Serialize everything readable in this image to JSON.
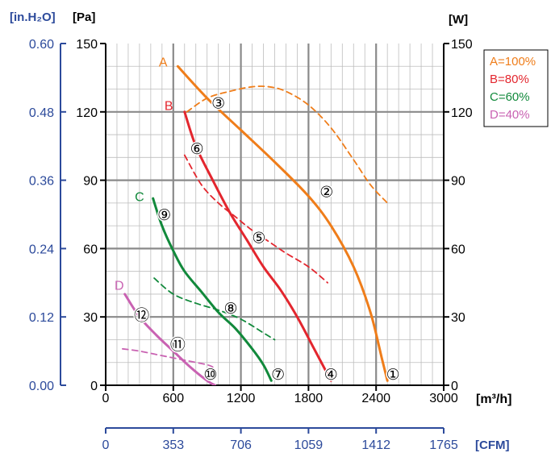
{
  "chart_data": {
    "type": "line",
    "title": "",
    "units": {
      "inh2o": "[in.H₂O]",
      "pa": "[Pa]",
      "w": "[W]",
      "flow": "[m³/h]",
      "cfm": "[CFM]"
    },
    "x_axis": {
      "label": "[m³/h]",
      "range": [
        0,
        3000
      ],
      "ticks": [
        "0",
        "600",
        "1200",
        "1800",
        "2400",
        "3000"
      ]
    },
    "x2_axis": {
      "label": "[CFM]",
      "range": [
        0,
        1765
      ],
      "ticks": [
        "0",
        "353",
        "706",
        "1059",
        "1412",
        "1765"
      ]
    },
    "y_left_pa": {
      "label": "[Pa]",
      "range": [
        0,
        150
      ],
      "ticks": [
        "0",
        "30",
        "60",
        "90",
        "120",
        "150"
      ]
    },
    "y_left_inh2o": {
      "label": "[in.H₂O]",
      "range": [
        0,
        0.6
      ],
      "ticks": [
        "0.00",
        "0.12",
        "0.24",
        "0.36",
        "0.48",
        "0.60"
      ]
    },
    "y_right_w": {
      "label": "[W]",
      "range": [
        0,
        150
      ],
      "ticks": [
        "0",
        "30",
        "60",
        "90",
        "120",
        "150"
      ]
    },
    "grid": true,
    "legend": {
      "placement": "top-right",
      "entries": [
        {
          "text": "A=100%",
          "color": "#ef7d1a"
        },
        {
          "text": "B=80%",
          "color": "#e3262e"
        },
        {
          "text": "C=60%",
          "color": "#11893b"
        },
        {
          "text": "D=40%",
          "color": "#c962b2"
        }
      ]
    },
    "series": [
      {
        "name": "A",
        "color": "#ef7d1a",
        "kind": "pressure",
        "x": [
          640,
          900,
          1200,
          1500,
          1800,
          2000,
          2200,
          2350,
          2450,
          2500
        ],
        "y": [
          140,
          126,
          112,
          98,
          83,
          70,
          52,
          32,
          12,
          2
        ]
      },
      {
        "name": "A",
        "color": "#ef7d1a",
        "kind": "power",
        "dashed": true,
        "x": [
          720,
          900,
          1100,
          1300,
          1450,
          1600,
          1800,
          2000,
          2200,
          2350,
          2500
        ],
        "y": [
          120,
          126,
          129,
          131,
          131,
          129,
          123,
          113,
          99,
          88,
          80
        ]
      },
      {
        "name": "B",
        "color": "#e3262e",
        "kind": "pressure",
        "x": [
          700,
          800,
          950,
          1100,
          1250,
          1400,
          1550,
          1700,
          1850,
          2000
        ],
        "y": [
          120,
          105,
          90,
          76,
          64,
          52,
          42,
          30,
          16,
          2
        ]
      },
      {
        "name": "B",
        "color": "#e3262e",
        "kind": "power",
        "dashed": true,
        "x": [
          700,
          850,
          1000,
          1150,
          1300,
          1450,
          1600,
          1800,
          1970
        ],
        "y": [
          101,
          88,
          80,
          74,
          68,
          63,
          58,
          52,
          45
        ]
      },
      {
        "name": "C",
        "color": "#11893b",
        "kind": "pressure",
        "x": [
          420,
          500,
          600,
          700,
          850,
          1000,
          1150,
          1300,
          1400,
          1470
        ],
        "y": [
          82,
          70,
          59,
          50,
          41,
          32,
          25,
          16,
          9,
          2
        ]
      },
      {
        "name": "C",
        "color": "#11893b",
        "kind": "power",
        "dashed": true,
        "x": [
          430,
          600,
          800,
          1000,
          1200,
          1400,
          1500
        ],
        "y": [
          47,
          40,
          36,
          33,
          29,
          23,
          20
        ]
      },
      {
        "name": "D",
        "color": "#c962b2",
        "kind": "pressure",
        "x": [
          170,
          300,
          450,
          600,
          750,
          900,
          970
        ],
        "y": [
          40,
          30,
          22,
          15,
          8,
          2,
          0
        ]
      },
      {
        "name": "D",
        "color": "#c962b2",
        "kind": "power",
        "dashed": true,
        "x": [
          150,
          300,
          500,
          700,
          900,
          950
        ],
        "y": [
          16,
          15,
          13,
          11,
          9,
          8
        ]
      }
    ],
    "curve_labels": [
      {
        "text": "A",
        "x": 510,
        "y": 142,
        "color": "#ef7d1a"
      },
      {
        "text": "B",
        "x": 560,
        "y": 123,
        "color": "#e3262e"
      },
      {
        "text": "C",
        "x": 300,
        "y": 83,
        "color": "#11893b"
      },
      {
        "text": "D",
        "x": 120,
        "y": 44,
        "color": "#c962b2"
      }
    ],
    "operating_points": [
      {
        "label": "①",
        "x": 2550,
        "y": 5
      },
      {
        "label": "②",
        "x": 1960,
        "y": 85
      },
      {
        "label": "③",
        "x": 1000,
        "y": 124
      },
      {
        "label": "④",
        "x": 2000,
        "y": 5
      },
      {
        "label": "⑤",
        "x": 1360,
        "y": 65
      },
      {
        "label": "⑥",
        "x": 810,
        "y": 104
      },
      {
        "label": "⑦",
        "x": 1530,
        "y": 5
      },
      {
        "label": "⑧",
        "x": 1110,
        "y": 34
      },
      {
        "label": "⑨",
        "x": 520,
        "y": 75
      },
      {
        "label": "⑩",
        "x": 930,
        "y": 5
      },
      {
        "label": "⑪",
        "x": 640,
        "y": 18
      },
      {
        "label": "⑫",
        "x": 320,
        "y": 31
      }
    ]
  }
}
